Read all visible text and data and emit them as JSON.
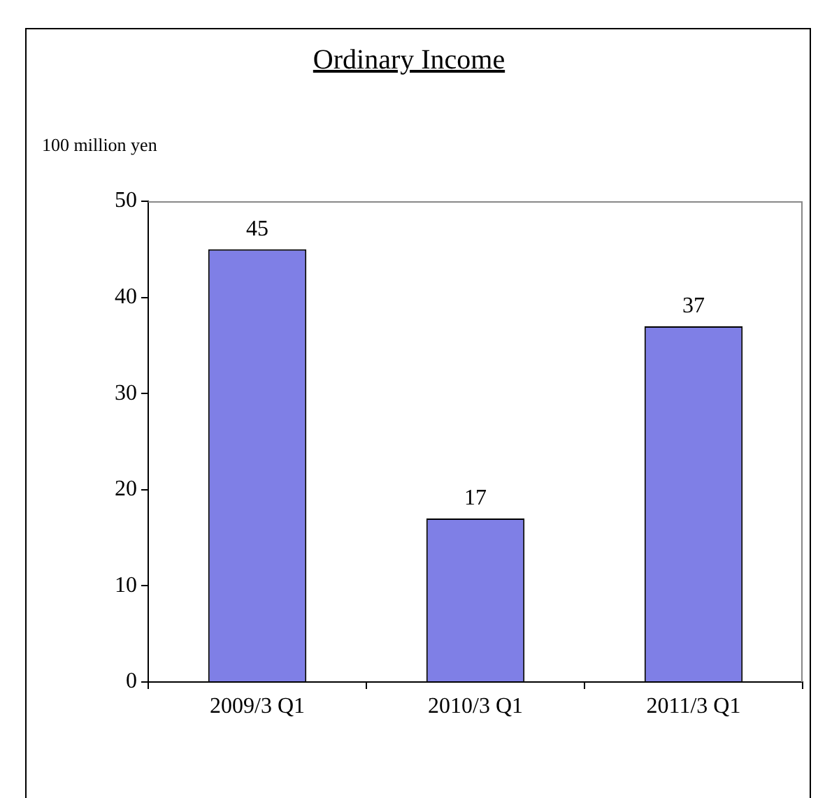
{
  "chart_data": {
    "type": "bar",
    "title": "Ordinary Income",
    "ylabel": "100 million yen",
    "categories": [
      "2009/3 Q1",
      "2010/3 Q1",
      "2011/3 Q1"
    ],
    "values": [
      45,
      17,
      37
    ],
    "color": "#7f7fe6",
    "ylim": [
      0,
      50
    ],
    "yticks": [
      0,
      10,
      20,
      30,
      40,
      50
    ],
    "data_labels": true,
    "grid": false
  }
}
